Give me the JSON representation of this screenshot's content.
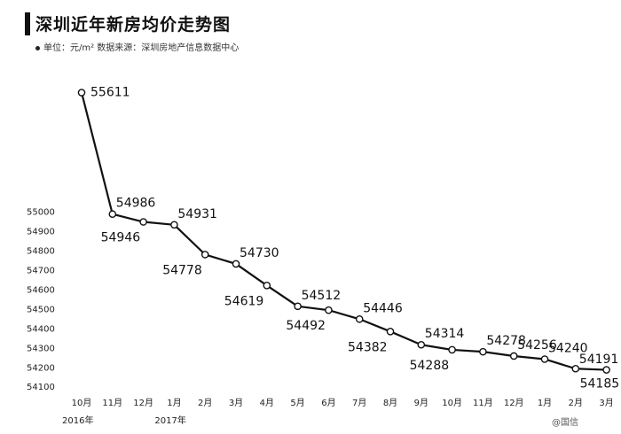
{
  "chart_data": {
    "type": "line",
    "title": "深圳近年新房均价走势图",
    "subtitle": "单位：元/m²  数据来源：深圳房地产信息数据中心",
    "categories": [
      "10月",
      "11月",
      "12月",
      "1月",
      "2月",
      "3月",
      "4月",
      "5月",
      "6月",
      "7月",
      "8月",
      "9月",
      "10月",
      "11月",
      "12月",
      "1月",
      "2月",
      "3月"
    ],
    "year_labels": [
      {
        "label": "2016年",
        "category_index": 0
      },
      {
        "label": "2017年",
        "category_index": 3
      }
    ],
    "series": [
      {
        "values": [
          55611,
          54986,
          54946,
          54931,
          54778,
          54730,
          54619,
          54512,
          54492,
          54446,
          54382,
          54314,
          54288,
          54278,
          54256,
          54240,
          54191,
          54185
        ]
      }
    ],
    "data_label_side": [
      "above",
      "above",
      "below",
      "above",
      "below",
      "above",
      "below",
      "above",
      "below",
      "above",
      "below",
      "above",
      "below",
      "above",
      "above",
      "above",
      "above",
      "below"
    ],
    "yticks": [
      54100,
      54200,
      54300,
      54400,
      54500,
      54600,
      54700,
      54800,
      54900,
      55000
    ],
    "ylim": [
      54060,
      55700
    ],
    "grid": false,
    "legend": "none",
    "line_color": "#111111",
    "marker_fill": "#ffffff",
    "watermark": "@国信"
  }
}
